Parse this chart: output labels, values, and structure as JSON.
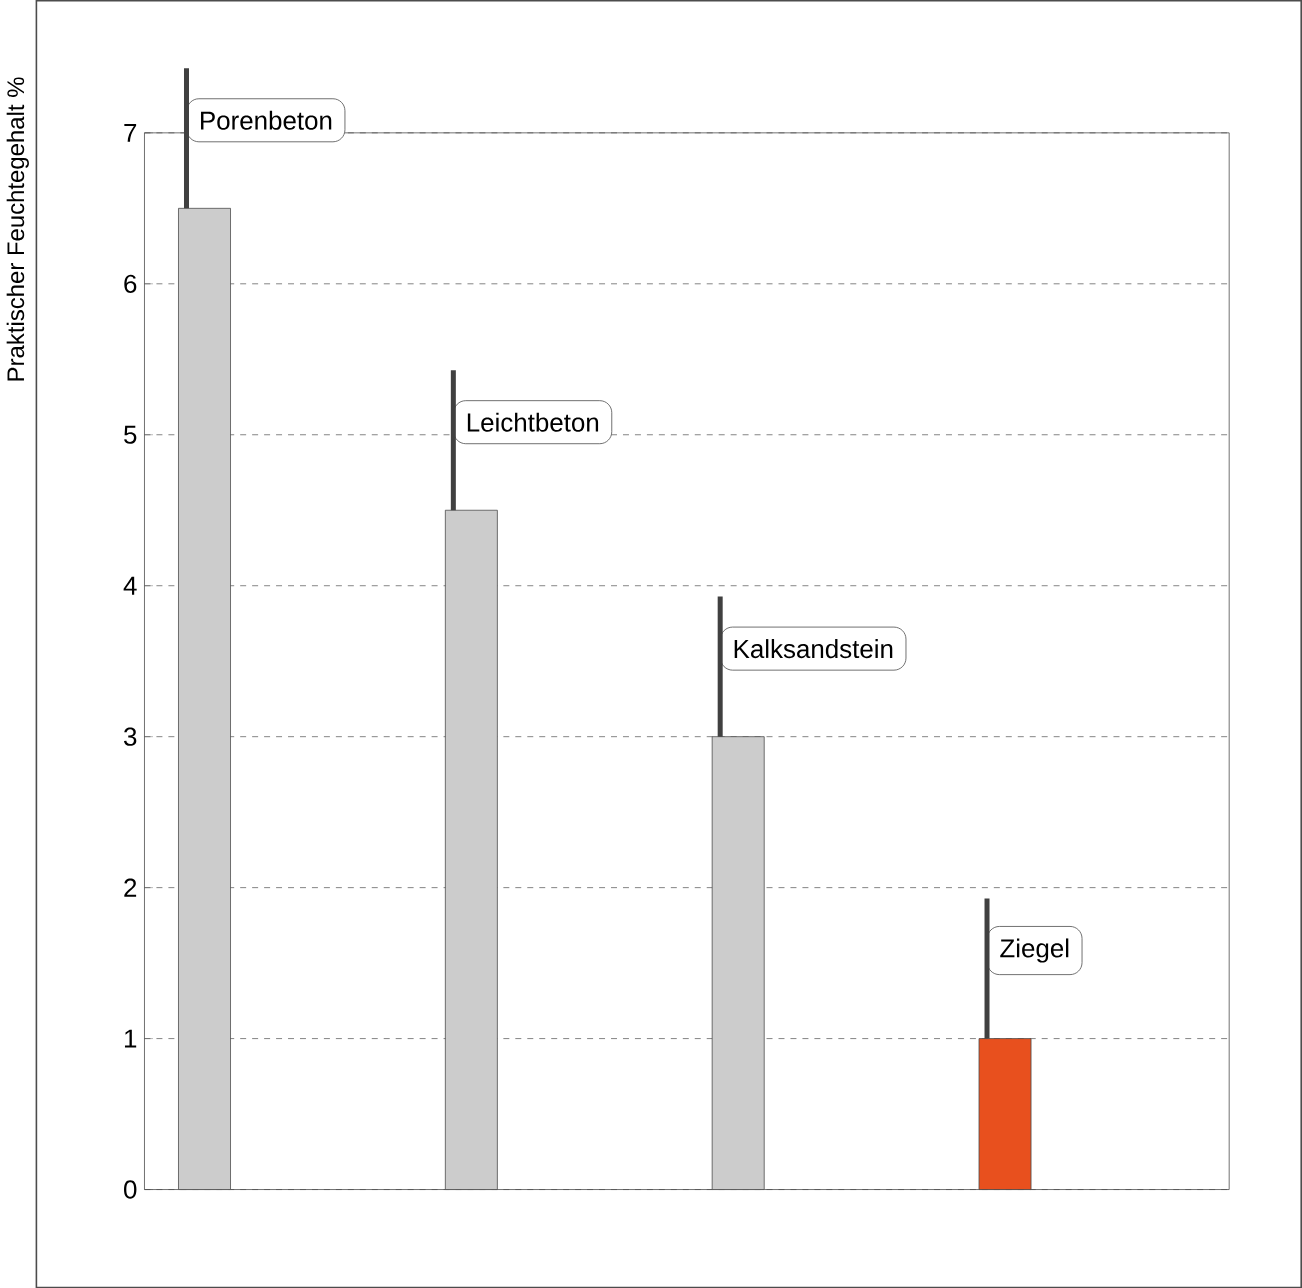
{
  "chart_data": {
    "type": "bar",
    "ylabel": "Praktischer Feuchtegehalt   %",
    "categories": [
      "Porenbeton",
      "Leichtbeton",
      "Kalksandstein",
      "Ziegel"
    ],
    "values": [
      6.5,
      4.5,
      3.0,
      1.0
    ],
    "colors": [
      "#cccccc",
      "#cccccc",
      "#cccccc",
      "#e8501e"
    ],
    "ylim": [
      0,
      7
    ],
    "yticks": [
      0,
      1,
      2,
      3,
      4,
      5,
      6,
      7
    ],
    "grid": "y",
    "tick_labels": "y"
  }
}
